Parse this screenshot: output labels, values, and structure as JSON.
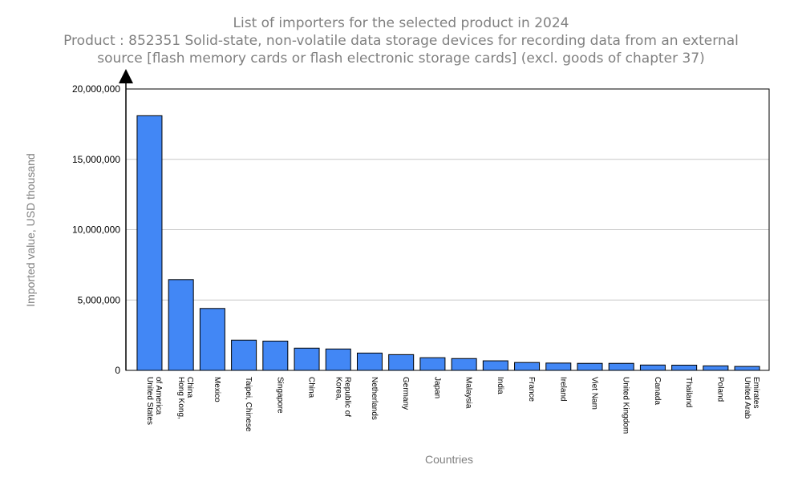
{
  "header": {
    "title": "List of importers for the selected product in 2024",
    "subtitle_line1": "Product : 852351 Solid-state, non-volatile data storage devices for recording data from an external",
    "subtitle_line2": "source [flash memory cards or flash electronic storage cards] (excl. goods of chapter 37)"
  },
  "chart_data": {
    "type": "bar",
    "title": "List of importers for the selected product in 2024",
    "subtitle": "Product : 852351 Solid-state, non-volatile data storage devices for recording data from an external source [flash memory cards or flash electronic storage cards] (excl. goods of chapter 37)",
    "xlabel": "Countries",
    "ylabel": "Imported value, USD thousand",
    "ylim": [
      0,
      20000000
    ],
    "yticks": [
      {
        "value": 0,
        "label": "0"
      },
      {
        "value": 5000000,
        "label": "5,000,000"
      },
      {
        "value": 10000000,
        "label": "10,000,000"
      },
      {
        "value": 15000000,
        "label": "15,000,000"
      },
      {
        "value": 20000000,
        "label": "20,000,000"
      }
    ],
    "grid": true,
    "bar_color": "#4287f5",
    "categories": [
      [
        "United States",
        "of America"
      ],
      [
        "Hong Kong,",
        "China"
      ],
      [
        "Mexico"
      ],
      [
        "Taipei, Chinese"
      ],
      [
        "Singapore"
      ],
      [
        "China"
      ],
      [
        "Korea,",
        "Republic of"
      ],
      [
        "Netherlands"
      ],
      [
        "Germany"
      ],
      [
        "Japan"
      ],
      [
        "Malaysia"
      ],
      [
        "India"
      ],
      [
        "France"
      ],
      [
        "Ireland"
      ],
      [
        "Viet Nam"
      ],
      [
        "United Kingdom"
      ],
      [
        "Canada"
      ],
      [
        "Thailand"
      ],
      [
        "Poland"
      ],
      [
        "United Arab",
        "Emirates"
      ]
    ],
    "values": [
      18100000,
      6450000,
      4400000,
      2150000,
      2080000,
      1580000,
      1520000,
      1230000,
      1120000,
      900000,
      840000,
      680000,
      560000,
      520000,
      500000,
      500000,
      380000,
      370000,
      320000,
      280000
    ]
  }
}
